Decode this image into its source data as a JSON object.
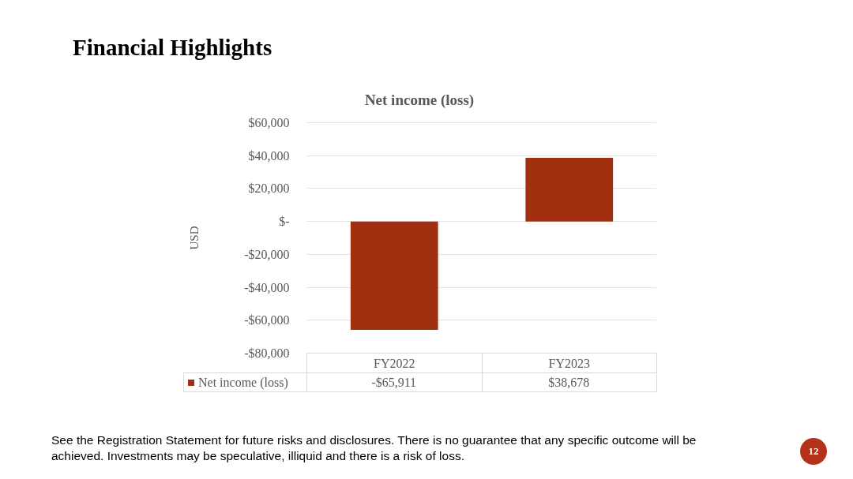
{
  "chart_data": {
    "type": "bar",
    "title": "Financial Highlights",
    "subtitle": "Net income (loss)",
    "ylabel": "USD",
    "categories": [
      "FY2022",
      "FY2023"
    ],
    "series": [
      {
        "name": "Net income (loss)",
        "color": "#a0300f",
        "values": [
          -65911,
          38678
        ],
        "value_labels": [
          "-$65,911",
          "$38,678"
        ]
      }
    ],
    "ylim": [
      -80000,
      60000
    ],
    "yticks": [
      {
        "value": -80000,
        "label": "-$80,000"
      },
      {
        "value": -60000,
        "label": "-$60,000"
      },
      {
        "value": -40000,
        "label": "-$40,000"
      },
      {
        "value": -20000,
        "label": "-$20,000"
      },
      {
        "value": 0,
        "label": "$-"
      },
      {
        "value": 20000,
        "label": "$20,000"
      },
      {
        "value": 40000,
        "label": "$40,000"
      },
      {
        "value": 60000,
        "label": "$60,000"
      }
    ],
    "grid": "y",
    "legend": "bottom",
    "annotations": [
      "See the Registration Statement for future risks and disclosures. There is no guarantee that any specific outcome will be achieved. Investments may be speculative, illiquid and there is a risk of loss.",
      "12"
    ]
  }
}
